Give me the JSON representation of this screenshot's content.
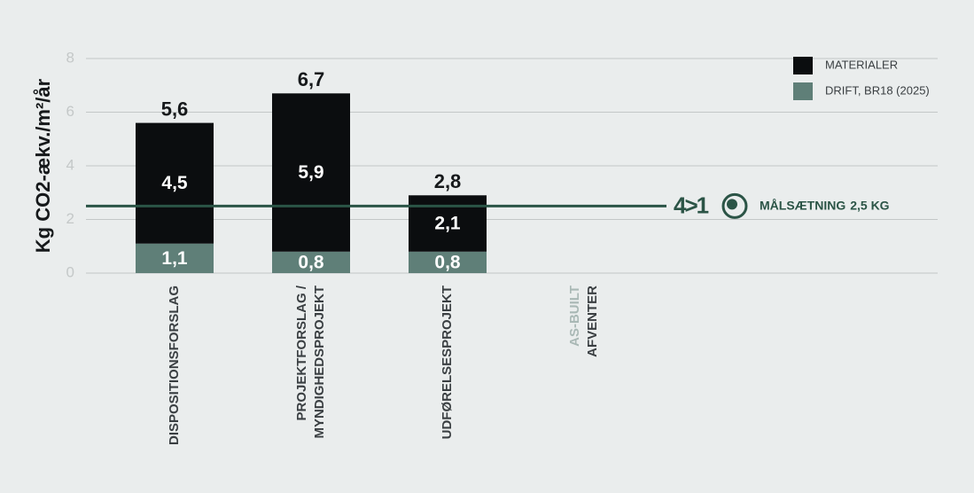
{
  "chart_data": {
    "type": "stacked_bar",
    "ylabel": "Kg CO2-ækv./m²/år",
    "categories": [
      [
        "DISPOSITIONSFORSLAG"
      ],
      [
        "PROJEKTFORSLAG /",
        "MYNDIGHEDSPROJEKT"
      ],
      [
        "UDFØRELSESPROJEKT"
      ],
      [
        "AS-BUILT",
        "AFVENTER"
      ]
    ],
    "category_colors": [
      [
        "#3a3f42"
      ],
      [
        "#3a3f42",
        "#3a3f42"
      ],
      [
        "#3a3f42"
      ],
      [
        "#a9b8b5",
        "#3a3f42"
      ]
    ],
    "series": [
      {
        "name": "DRIFT, BR18 (2025)",
        "color": "#5f7f78",
        "values": [
          1.1,
          0.8,
          0.8,
          null
        ],
        "value_labels": [
          "1,1",
          "0,8",
          "0,8",
          null
        ]
      },
      {
        "name": "MATERIALER",
        "color": "#0b0d0f",
        "values": [
          4.5,
          5.9,
          2.1,
          null
        ],
        "value_labels": [
          "4,5",
          "5,9",
          "2,1",
          null
        ]
      }
    ],
    "totals": [
      5.6,
      6.7,
      2.8,
      null
    ],
    "total_labels": [
      "5,6",
      "6,7",
      "2,8",
      null
    ],
    "target": {
      "value": 2.5,
      "logo": "4>1",
      "label": "MÅLSÆTNING",
      "value_label": "2,5 KG",
      "color": "#2b5446"
    },
    "ylim": [
      0,
      8
    ],
    "yticks": [
      0,
      2,
      4,
      6,
      8
    ],
    "grid": true,
    "legend": "top-right"
  }
}
